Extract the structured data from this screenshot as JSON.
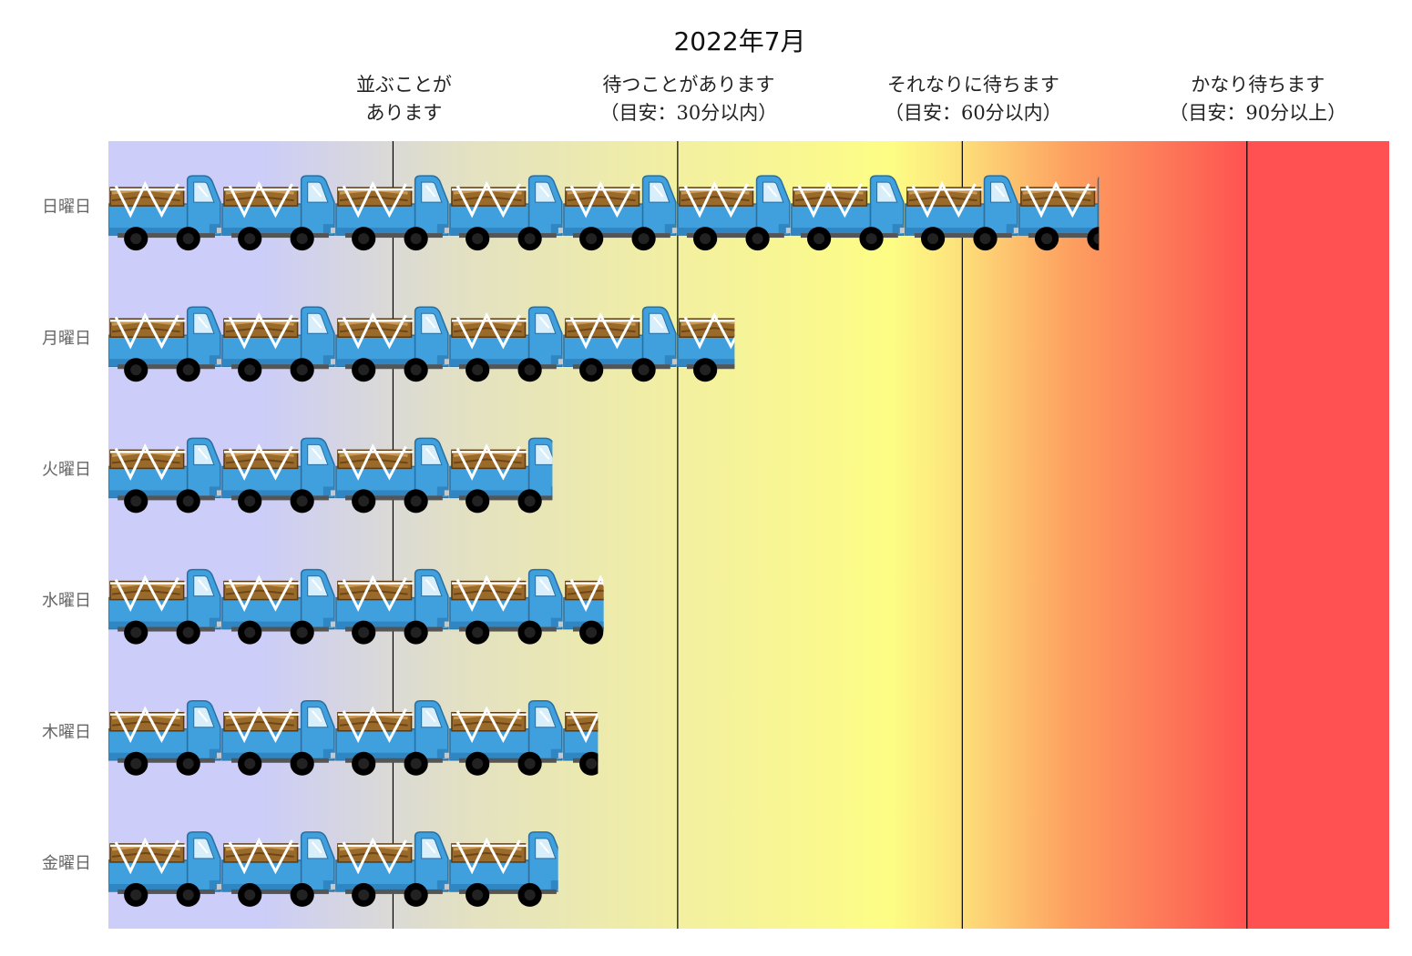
{
  "chart_data": {
    "type": "bar",
    "title": "2022年7月",
    "orientation": "horizontal",
    "pictogram": "truck-icon",
    "categories": [
      "日曜日",
      "月曜日",
      "火曜日",
      "水曜日",
      "木曜日",
      "金曜日"
    ],
    "values": [
      8.7,
      5.5,
      3.9,
      4.35,
      4.3,
      3.95
    ],
    "xlim": [
      0,
      11.25
    ],
    "thresholds": [
      2.5,
      5,
      7.5,
      10
    ],
    "bands": [
      {
        "line1": "並ぶことが",
        "line2": "あります"
      },
      {
        "line1": "待つことがあります",
        "line2": "（目安：30分以内）"
      },
      {
        "line1": "それなりに待ちます",
        "line2": "（目安：60分以内）"
      },
      {
        "line1": "かなり待ちます",
        "line2": "（目安：90分以上）"
      }
    ],
    "colors": {
      "background_start": "#cccdf8",
      "background_mid": "#fdfd85",
      "background_end": "#ff5151",
      "truck_body": "#3fa0dd",
      "threshold_line": "#000000"
    },
    "grid": false,
    "legend": "none"
  }
}
